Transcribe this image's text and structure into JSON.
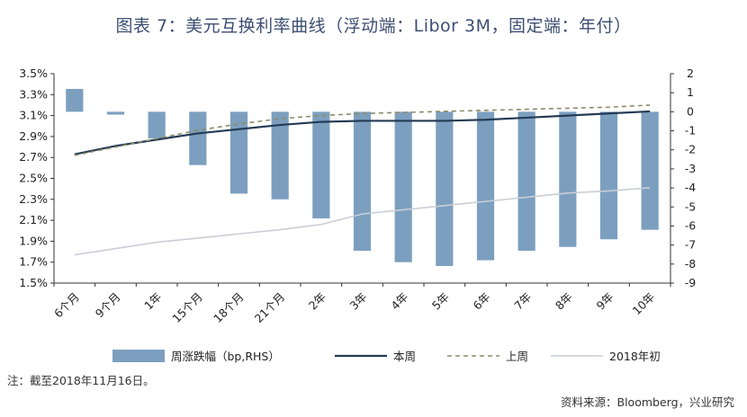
{
  "colors": {
    "bar": "#7c9fbf",
    "this_week": "#243b55",
    "last_week": "#8c8c6a",
    "year_start": "#c9ced6",
    "axis": "#333333"
  },
  "note": "注：截至2018年11月16日。",
  "source": "资料来源：Bloomberg，兴业研究",
  "chart_data": {
    "type": "bar+line",
    "title": "图表 7：美元互换利率曲线（浮动端：Libor 3M，固定端：年付）",
    "categories": [
      "6个月",
      "9个月",
      "1年",
      "15个月",
      "18个月",
      "21个月",
      "2年",
      "3年",
      "4年",
      "5年",
      "6年",
      "7年",
      "8年",
      "9年",
      "10年"
    ],
    "y_left": {
      "ticks": [
        "3.5%",
        "3.3%",
        "3.1%",
        "2.9%",
        "2.7%",
        "2.5%",
        "2.3%",
        "2.1%",
        "1.9%",
        "1.7%",
        "1.5%"
      ],
      "ylim": [
        1.5,
        3.5
      ]
    },
    "y_right": {
      "ticks": [
        "2",
        "1",
        "0",
        "-1",
        "-2",
        "-3",
        "-4",
        "-5",
        "-6",
        "-7",
        "-8",
        "-9"
      ],
      "ylim": [
        -9,
        2
      ]
    },
    "series": [
      {
        "name": "周涨跌幅（bp,RHS）",
        "type": "bar",
        "axis": "right",
        "values": [
          1.2,
          -0.15,
          -1.4,
          -2.8,
          -4.3,
          -4.6,
          -5.6,
          -7.3,
          -7.9,
          -8.1,
          -7.8,
          -7.3,
          -7.1,
          -6.7,
          -6.2
        ]
      },
      {
        "name": "本周",
        "type": "line",
        "axis": "left",
        "values": [
          2.73,
          2.81,
          2.87,
          2.93,
          2.97,
          3.01,
          3.04,
          3.05,
          3.05,
          3.05,
          3.06,
          3.08,
          3.1,
          3.12,
          3.14
        ]
      },
      {
        "name": "上周",
        "type": "line",
        "axis": "left",
        "dashed": true,
        "values": [
          2.72,
          2.8,
          2.88,
          2.96,
          3.02,
          3.07,
          3.1,
          3.12,
          3.13,
          3.14,
          3.15,
          3.16,
          3.17,
          3.18,
          3.2
        ]
      },
      {
        "name": "2018年初",
        "type": "line",
        "axis": "left",
        "values": [
          1.77,
          1.83,
          1.89,
          1.93,
          1.97,
          2.01,
          2.06,
          2.16,
          2.2,
          2.24,
          2.28,
          2.32,
          2.36,
          2.38,
          2.41
        ]
      }
    ],
    "legend": [
      "周涨跌幅（bp,RHS）",
      "本周",
      "上周",
      "2018年初"
    ]
  }
}
